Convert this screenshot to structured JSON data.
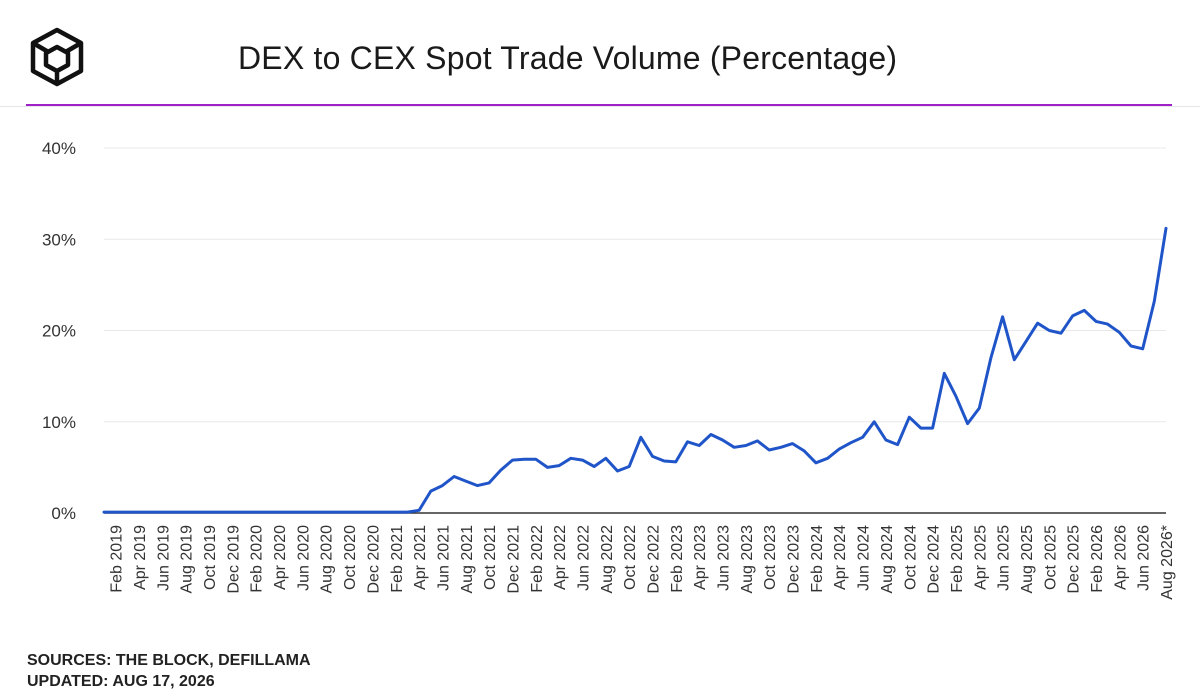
{
  "header": {
    "title": "DEX to CEX Spot Trade Volume (Percentage)",
    "logo_icon": "the-block-cube-logo"
  },
  "footer": {
    "sources": "SOURCES: THE BLOCK, DEFILLAMA",
    "updated": "UPDATED: AUG 17, 2026"
  },
  "colors": {
    "line": "#1f55c8",
    "accent_rule": "#a020c8",
    "grid": "#e8e8e8",
    "axis": "#333333",
    "text": "#222222"
  },
  "chart_data": {
    "type": "line",
    "title": "DEX to CEX Spot Trade Volume (Percentage)",
    "xlabel": "",
    "ylabel": "",
    "ylim": [
      0,
      40
    ],
    "yticks": [
      0,
      10,
      20,
      30,
      40
    ],
    "ytick_labels": [
      "0%",
      "10%",
      "20%",
      "30%",
      "40%"
    ],
    "grid": true,
    "legend": "none",
    "x": [
      "Jan 2019",
      "Feb 2019",
      "Mar 2019",
      "Apr 2019",
      "May 2019",
      "Jun 2019",
      "Jul 2019",
      "Aug 2019",
      "Sep 2019",
      "Oct 2019",
      "Nov 2019",
      "Dec 2019",
      "Jan 2020",
      "Feb 2020",
      "Mar 2020",
      "Apr 2020",
      "May 2020",
      "Jun 2020",
      "Jul 2020",
      "Aug 2020",
      "Sep 2020",
      "Oct 2020",
      "Nov 2020",
      "Dec 2020",
      "Jan 2021",
      "Feb 2021",
      "Mar 2021",
      "Apr 2021",
      "May 2021",
      "Jun 2021",
      "Jul 2021",
      "Aug 2021",
      "Sep 2021",
      "Oct 2021",
      "Nov 2021",
      "Dec 2021",
      "Jan 2022",
      "Feb 2022",
      "Mar 2022",
      "Apr 2022",
      "May 2022",
      "Jun 2022",
      "Jul 2022",
      "Aug 2022",
      "Sep 2022",
      "Oct 2022",
      "Nov 2022",
      "Dec 2022",
      "Jan 2023",
      "Feb 2023",
      "Mar 2023",
      "Apr 2023",
      "May 2023",
      "Jun 2023",
      "Jul 2023",
      "Aug 2023",
      "Sep 2023",
      "Oct 2023",
      "Nov 2023",
      "Dec 2023",
      "Jan 2024",
      "Feb 2024",
      "Mar 2024",
      "Apr 2024",
      "May 2024",
      "Jun 2024",
      "Jul 2024",
      "Aug 2024",
      "Sep 2024",
      "Oct 2024",
      "Nov 2024",
      "Dec 2024",
      "Jan 2025",
      "Feb 2025",
      "Mar 2025",
      "Apr 2025",
      "May 2025",
      "Jun 2025",
      "Jul 2025",
      "Aug 2025",
      "Sep 2025",
      "Oct 2025",
      "Nov 2025",
      "Dec 2025",
      "Jan 2026",
      "Feb 2026",
      "Mar 2026",
      "Apr 2026",
      "May 2026",
      "Jun 2026",
      "Jul 2026",
      "Aug 2026*"
    ],
    "x_tick_labels": [
      "Feb 2019",
      "Apr 2019",
      "Jun 2019",
      "Aug 2019",
      "Oct 2019",
      "Dec 2019",
      "Feb 2020",
      "Apr 2020",
      "Jun 2020",
      "Aug 2020",
      "Oct 2020",
      "Dec 2020",
      "Feb 2021",
      "Apr 2021",
      "Jun 2021",
      "Aug 2021",
      "Oct 2021",
      "Dec 2021",
      "Feb 2022",
      "Apr 2022",
      "Jun 2022",
      "Aug 2022",
      "Oct 2022",
      "Dec 2022",
      "Feb 2023",
      "Apr 2023",
      "Jun 2023",
      "Aug 2023",
      "Oct 2023",
      "Dec 2023",
      "Feb 2024",
      "Apr 2024",
      "Jun 2024",
      "Aug 2024",
      "Oct 2024",
      "Dec 2024",
      "Feb 2025",
      "Apr 2025",
      "Jun 2025",
      "Aug 2025",
      "Oct 2025",
      "Dec 2025",
      "Feb 2026",
      "Apr 2026",
      "Jun 2026",
      "Aug 2026*"
    ],
    "series": [
      {
        "values": [
          0.1,
          0.1,
          0.1,
          0.1,
          0.1,
          0.1,
          0.1,
          0.1,
          0.1,
          0.1,
          0.1,
          0.1,
          0.1,
          0.1,
          0.1,
          0.1,
          0.1,
          0.1,
          0.1,
          0.1,
          0.1,
          0.1,
          0.1,
          0.1,
          0.1,
          0.1,
          0.1,
          0.3,
          2.4,
          3.0,
          4.0,
          3.5,
          3.0,
          3.3,
          4.7,
          5.8,
          5.9,
          5.9,
          5.0,
          5.2,
          6.0,
          5.8,
          5.1,
          6.0,
          4.6,
          5.1,
          8.3,
          6.2,
          5.7,
          5.6,
          7.8,
          7.4,
          8.6,
          8.0,
          7.2,
          7.4,
          7.9,
          6.9,
          7.2,
          7.6,
          6.8,
          5.5,
          6.0,
          7.0,
          7.7,
          8.3,
          10.0,
          8.0,
          7.5,
          10.5,
          9.3,
          9.3,
          15.3,
          12.8,
          9.8,
          11.5,
          17.0,
          21.5,
          16.8,
          18.8,
          20.8,
          20.0,
          19.7,
          21.6,
          22.2,
          21.0,
          20.7,
          19.8,
          18.3,
          18.0,
          23.2,
          31.2
        ]
      }
    ]
  }
}
